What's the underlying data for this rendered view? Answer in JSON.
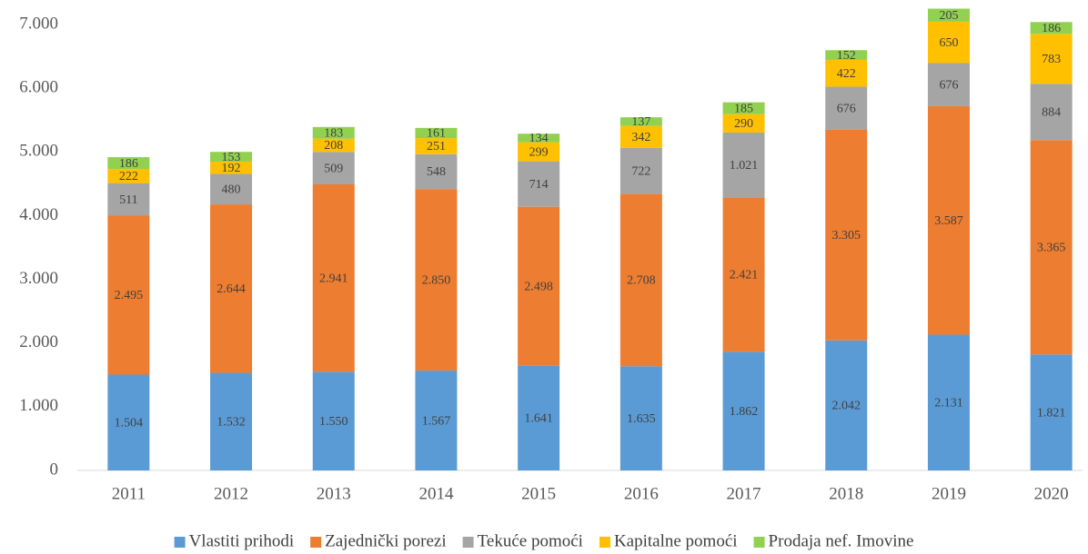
{
  "chart_data": {
    "type": "stacked_bar",
    "categories": [
      "2011",
      "2012",
      "2013",
      "2014",
      "2015",
      "2016",
      "2017",
      "2018",
      "2019",
      "2020"
    ],
    "series": [
      {
        "name": "Vlastiti prihodi",
        "color": "#5b9bd5",
        "values": [
          1504,
          1532,
          1550,
          1567,
          1641,
          1635,
          1862,
          2042,
          2131,
          1821
        ],
        "value_labels": [
          "1.504",
          "1.532",
          "1.550",
          "1.567",
          "1.641",
          "1.635",
          "1.862",
          "2.042",
          "2.131",
          "1.821"
        ]
      },
      {
        "name": "Zajednički porezi",
        "color": "#ed7d31",
        "values": [
          2495,
          2644,
          2941,
          2850,
          2498,
          2708,
          2421,
          3305,
          3587,
          3365
        ],
        "value_labels": [
          "2.495",
          "2.644",
          "2.941",
          "2.850",
          "2.498",
          "2.708",
          "2.421",
          "3.305",
          "3.587",
          "3.365"
        ]
      },
      {
        "name": "Tekuće pomoći",
        "color": "#a5a5a5",
        "values": [
          511,
          480,
          509,
          548,
          714,
          722,
          1021,
          676,
          676,
          884
        ],
        "value_labels": [
          "511",
          "480",
          "509",
          "548",
          "714",
          "722",
          "1.021",
          "676",
          "676",
          "884"
        ]
      },
      {
        "name": "Kapitalne pomoći",
        "color": "#ffc000",
        "values": [
          222,
          192,
          208,
          251,
          299,
          342,
          290,
          422,
          650,
          783
        ]
      },
      {
        "name": "Prodaja nef. Imovine",
        "color": "#92d050",
        "values": [
          186,
          153,
          183,
          161,
          134,
          137,
          185,
          152,
          205,
          186
        ]
      }
    ],
    "ylim": [
      0,
      7000
    ],
    "yticks": [
      0,
      {
        "value": 1000,
        "label": "1.000"
      },
      {
        "value": 2000,
        "label": "2.000"
      },
      {
        "value": 3000,
        "label": "3.000"
      },
      {
        "value": 4000,
        "label": "4.000"
      },
      {
        "value": 5000,
        "label": "5.000"
      },
      {
        "value": 6000,
        "label": "6.000"
      },
      {
        "value": 7000,
        "label": "7.000"
      }
    ],
    "grid": false,
    "legend": "bottom"
  }
}
